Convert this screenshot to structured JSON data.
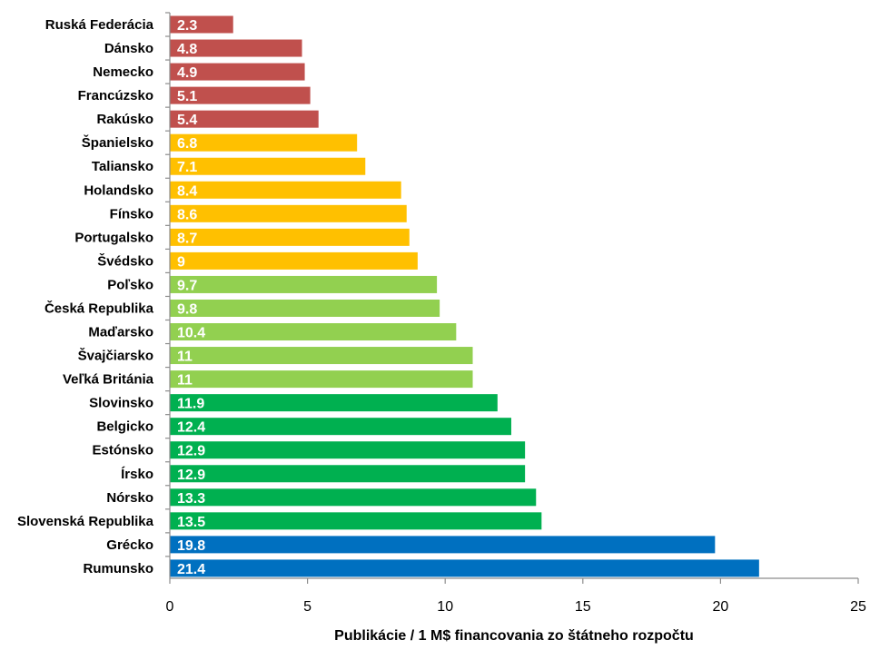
{
  "chart_data": {
    "type": "bar",
    "orientation": "horizontal",
    "categories": [
      "Ruská Federácia",
      "Dánsko",
      "Nemecko",
      "Francúzsko",
      "Rakúsko",
      "Španielsko",
      "Taliansko",
      "Holandsko",
      "Fínsko",
      "Portugalsko",
      "Švédsko",
      "Poľsko",
      "Česká Republika",
      "Maďarsko",
      "Švajčiarsko",
      "Veľká Británia",
      "Slovinsko",
      "Belgicko",
      "Estónsko",
      "Írsko",
      "Nórsko",
      "Slovenská Republika",
      "Grécko",
      "Rumunsko"
    ],
    "values": [
      2.3,
      4.8,
      4.9,
      5.1,
      5.4,
      6.8,
      7.1,
      8.4,
      8.6,
      8.7,
      9,
      9.7,
      9.8,
      10.4,
      11,
      11,
      11.9,
      12.4,
      12.9,
      12.9,
      13.3,
      13.5,
      19.8,
      21.4
    ],
    "value_labels": [
      "2.3",
      "4.8",
      "4.9",
      "5.1",
      "5.4",
      "6.8",
      "7.1",
      "8.4",
      "8.6",
      "8.7",
      "9",
      "9.7",
      "9.8",
      "10.4",
      "11",
      "11",
      "11.9",
      "12.4",
      "12.9",
      "12.9",
      "13.3",
      "13.5",
      "19.8",
      "21.4"
    ],
    "bar_colors": [
      "#c0504d",
      "#c0504d",
      "#c0504d",
      "#c0504d",
      "#c0504d",
      "#ffc000",
      "#ffc000",
      "#ffc000",
      "#ffc000",
      "#ffc000",
      "#ffc000",
      "#92d050",
      "#92d050",
      "#92d050",
      "#92d050",
      "#92d050",
      "#00b050",
      "#00b050",
      "#00b050",
      "#00b050",
      "#00b050",
      "#00b050",
      "#0070c0",
      "#0070c0"
    ],
    "xlabel": "Publikácie  / 1 M$ financovania  zo štátneho rozpočtu",
    "xlim": [
      0,
      25
    ],
    "xticks": [
      0,
      5,
      10,
      15,
      20,
      25
    ],
    "grid": false,
    "legend": "none"
  }
}
